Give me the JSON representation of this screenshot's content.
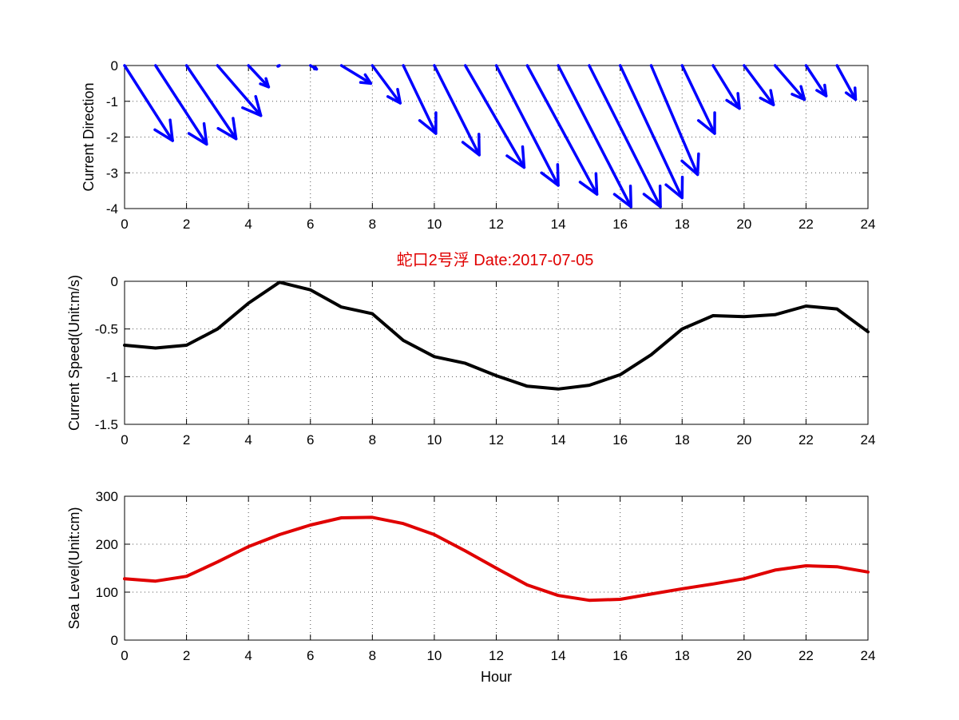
{
  "figure": {
    "title": "蛇口2号浮   Date:2017-07-05",
    "title_color": "#e00000"
  },
  "chart_data": [
    {
      "type": "quiver",
      "id": "direction",
      "ylabel": "Current Direction",
      "xlabel": "",
      "xlim": [
        0,
        24
      ],
      "ylim": [
        -4,
        0
      ],
      "xticks": [
        0,
        2,
        4,
        6,
        8,
        10,
        12,
        14,
        16,
        18,
        20,
        22,
        24
      ],
      "yticks": [
        0,
        -1,
        -2,
        -3,
        -4
      ],
      "grid": true,
      "color": "#0000ff",
      "series": [
        {
          "x": [
            0,
            1,
            2,
            3,
            4,
            5,
            6,
            7,
            8,
            9,
            10,
            11,
            12,
            13,
            14,
            15,
            16,
            17,
            18,
            19,
            20,
            21,
            22,
            23
          ],
          "u": [
            1.55,
            1.65,
            1.6,
            1.4,
            0.65,
            -0.05,
            0.2,
            0.95,
            0.9,
            1.05,
            1.45,
            1.9,
            2.0,
            2.25,
            2.35,
            2.3,
            2.0,
            1.5,
            1.05,
            0.85,
            0.95,
            0.95,
            0.65,
            0.6
          ],
          "v": [
            -2.1,
            -2.2,
            -2.05,
            -1.4,
            -0.6,
            -0.02,
            -0.1,
            -0.5,
            -1.05,
            -1.9,
            -2.5,
            -2.85,
            -3.35,
            -3.6,
            -3.95,
            -3.95,
            -3.7,
            -3.05,
            -1.9,
            -1.2,
            -1.1,
            -0.95,
            -0.85,
            -0.95
          ]
        }
      ]
    },
    {
      "type": "line",
      "id": "speed",
      "ylabel": "Current Speed(Unit:m/s)",
      "xlabel": "",
      "xlim": [
        0,
        24
      ],
      "ylim": [
        -1.5,
        0
      ],
      "xticks": [
        0,
        2,
        4,
        6,
        8,
        10,
        12,
        14,
        16,
        18,
        20,
        22,
        24
      ],
      "yticks": [
        0,
        -0.5,
        -1,
        -1.5
      ],
      "grid": true,
      "series": [
        {
          "color": "#000000",
          "x": [
            0,
            1,
            2,
            3,
            4,
            5,
            6,
            7,
            8,
            9,
            10,
            11,
            12,
            13,
            14,
            15,
            16,
            17,
            18,
            19,
            20,
            21,
            22,
            23,
            24
          ],
          "values": [
            -0.67,
            -0.7,
            -0.67,
            -0.5,
            -0.23,
            -0.01,
            -0.09,
            -0.27,
            -0.34,
            -0.62,
            -0.79,
            -0.86,
            -0.99,
            -1.1,
            -1.13,
            -1.09,
            -0.98,
            -0.77,
            -0.5,
            -0.36,
            -0.37,
            -0.35,
            -0.26,
            -0.29,
            -0.53
          ]
        }
      ]
    },
    {
      "type": "line",
      "id": "sealevel",
      "ylabel": "Sea Level(Unit:cm)",
      "xlabel": "Hour",
      "xlim": [
        0,
        24
      ],
      "ylim": [
        0,
        300
      ],
      "xticks": [
        0,
        2,
        4,
        6,
        8,
        10,
        12,
        14,
        16,
        18,
        20,
        22,
        24
      ],
      "yticks": [
        0,
        100,
        200,
        300
      ],
      "grid": true,
      "series": [
        {
          "color": "#e00000",
          "x": [
            0,
            1,
            2,
            3,
            4,
            5,
            6,
            7,
            8,
            9,
            10,
            11,
            12,
            13,
            14,
            15,
            16,
            17,
            18,
            19,
            20,
            21,
            22,
            23,
            24
          ],
          "values": [
            128,
            123,
            133,
            163,
            195,
            220,
            240,
            255,
            256,
            243,
            220,
            186,
            150,
            115,
            93,
            83,
            85,
            96,
            107,
            117,
            128,
            146,
            155,
            153,
            142
          ]
        }
      ]
    }
  ]
}
